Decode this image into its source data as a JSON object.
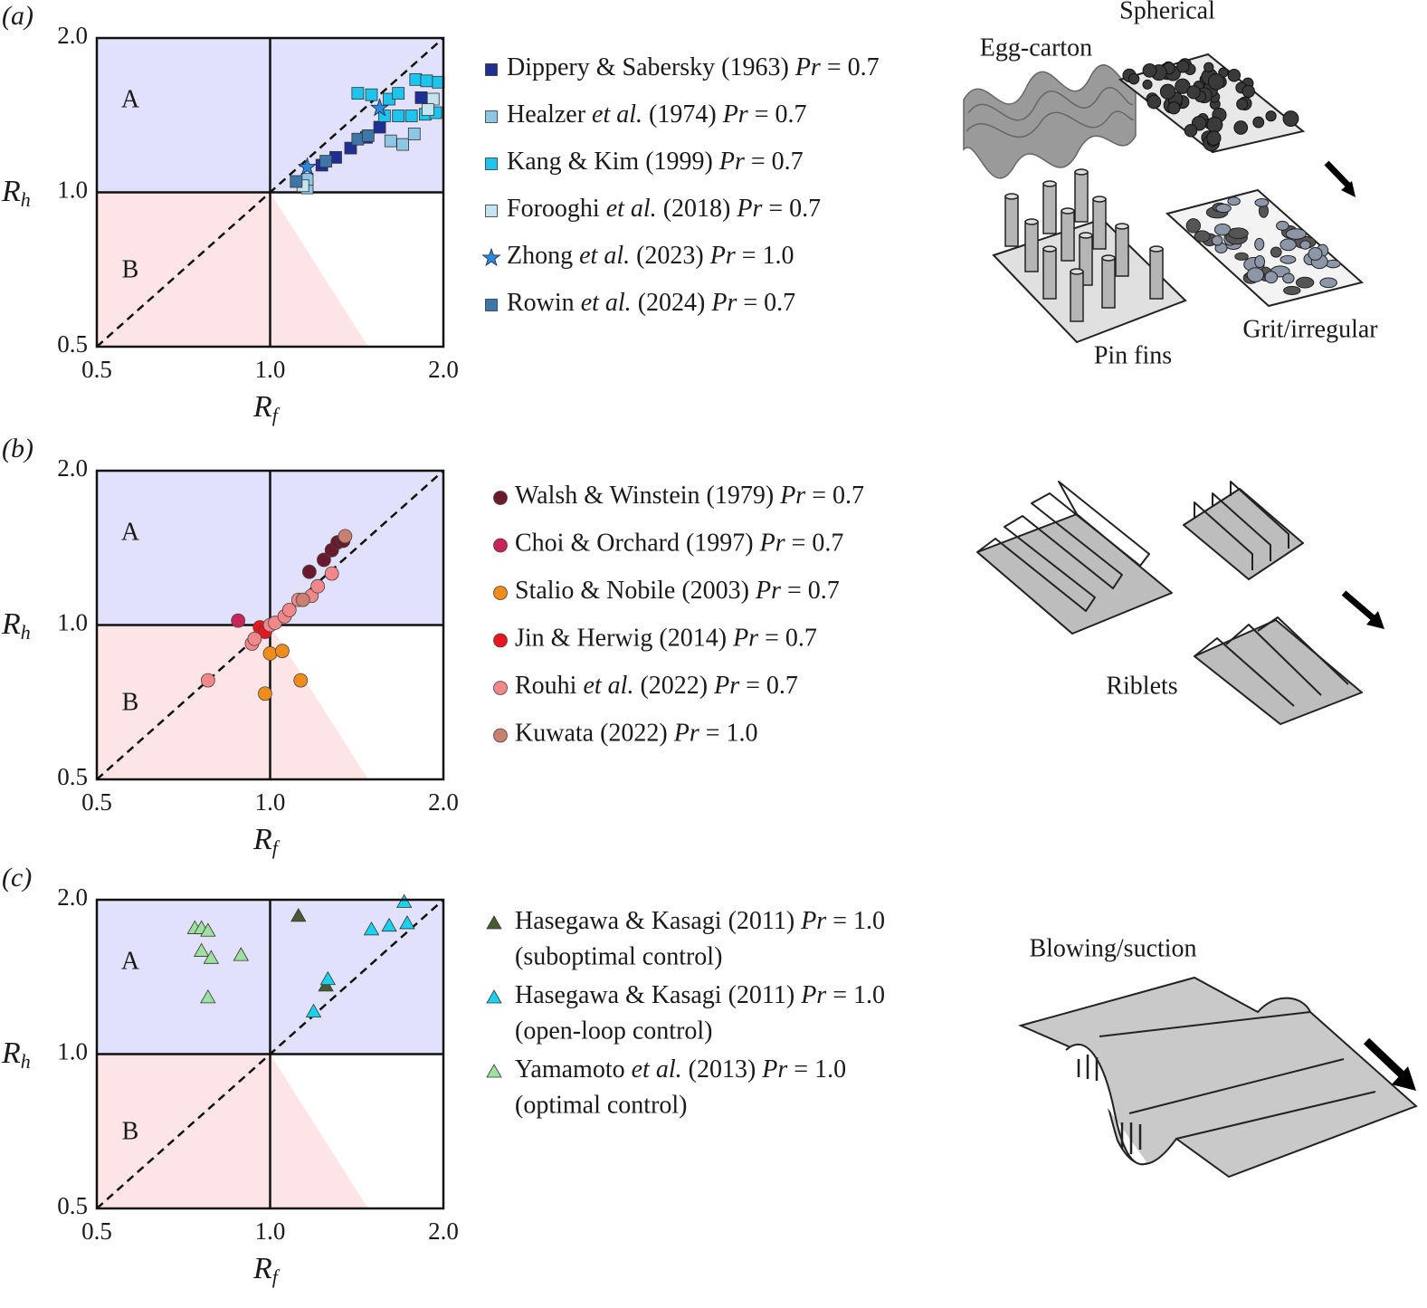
{
  "chart_data": [
    {
      "type": "scatter",
      "panel": "(a)",
      "xlabel": "Rf",
      "ylabel": "Rh",
      "xscale": "log",
      "yscale": "log",
      "xlim": [
        0.5,
        2.0
      ],
      "ylim": [
        0.5,
        2.0
      ],
      "xticks": [
        0.5,
        {
          "value": 1.0,
          "label": "1.0"
        },
        {
          "value": 2.0,
          "label": "2.0"
        }
      ],
      "yticks": [
        0.5,
        {
          "value": 1.0,
          "label": "1.0"
        },
        {
          "value": 2.0,
          "label": "2.0"
        }
      ],
      "vline": 1.0,
      "hline": 1.0,
      "diagonal": true,
      "regions": [
        {
          "label": "A",
          "color": "#e1e1fb",
          "label_color": "#5b1a8a",
          "polygon": [
            [
              0.5,
              1.0
            ],
            [
              2.0,
              1.0
            ],
            [
              2.0,
              2.0
            ],
            [
              0.5,
              2.0
            ]
          ]
        },
        {
          "label": "B",
          "color": "#fde4e7",
          "label_color": "#e0208a",
          "polygon": [
            [
              0.5,
              0.5
            ],
            [
              0.5,
              1.0
            ],
            [
              1.0,
              1.0
            ],
            [
              1.48,
              0.5
            ]
          ]
        }
      ],
      "series": [
        {
          "name": "Dippery & Sabersky (1963) Pr = 0.7",
          "marker": "square",
          "color": "#1f2f96",
          "x": [
            1.23,
            1.3,
            1.38,
            1.47,
            1.55,
            1.83
          ],
          "values": [
            1.13,
            1.17,
            1.22,
            1.28,
            1.34,
            1.53
          ]
        },
        {
          "name": "Healzer et al. (1974) Pr = 0.7",
          "marker": "square",
          "color": "#8ec6e6",
          "x": [
            1.16,
            1.16,
            1.62,
            1.7,
            1.78
          ],
          "values": [
            1.02,
            1.06,
            1.26,
            1.24,
            1.3
          ]
        },
        {
          "name": "Kang & Kim (1999) Pr = 0.7",
          "marker": "square",
          "color": "#1cc4ee",
          "x": [
            1.42,
            1.5,
            1.61,
            1.58,
            1.67,
            1.76,
            1.86,
            1.94,
            1.79,
            1.87,
            1.96,
            1.67
          ],
          "values": [
            1.56,
            1.55,
            1.52,
            1.41,
            1.41,
            1.41,
            1.42,
            1.43,
            1.66,
            1.65,
            1.64,
            1.56
          ]
        },
        {
          "name": "Forooghi et al. (2018) Pr = 0.7",
          "marker": "square",
          "color": "#c4e4f2",
          "x": [
            1.14,
            1.92,
            1.88
          ],
          "values": [
            1.03,
            1.52,
            1.45
          ]
        },
        {
          "name": "Zhong et al. (2023) Pr = 1.0",
          "marker": "star",
          "color": "#2a8ad8",
          "x": [
            1.16,
            1.55
          ],
          "values": [
            1.12,
            1.46
          ]
        },
        {
          "name": "Rowin et al. (2024) Pr = 0.7",
          "marker": "square",
          "color": "#3f76a8",
          "x": [
            1.11,
            1.25,
            1.42,
            1.48
          ],
          "values": [
            1.05,
            1.15,
            1.27,
            1.29
          ]
        }
      ]
    },
    {
      "type": "scatter",
      "panel": "(b)",
      "xlabel": "Rf",
      "ylabel": "Rh",
      "xscale": "log",
      "yscale": "log",
      "xlim": [
        0.5,
        2.0
      ],
      "ylim": [
        0.5,
        2.0
      ],
      "xticks": [
        0.5,
        {
          "value": 1.0,
          "label": "1.0"
        },
        {
          "value": 2.0,
          "label": "2.0"
        }
      ],
      "yticks": [
        0.5,
        {
          "value": 1.0,
          "label": "1.0"
        },
        {
          "value": 2.0,
          "label": "2.0"
        }
      ],
      "vline": 1.0,
      "hline": 1.0,
      "diagonal": true,
      "regions": [
        {
          "label": "A",
          "color": "#e1e1fb",
          "label_color": "#5b1a8a",
          "polygon": [
            [
              0.5,
              1.0
            ],
            [
              2.0,
              1.0
            ],
            [
              2.0,
              2.0
            ],
            [
              0.5,
              2.0
            ]
          ]
        },
        {
          "label": "B",
          "color": "#fde4e7",
          "label_color": "#e0208a",
          "polygon": [
            [
              0.5,
              0.5
            ],
            [
              0.5,
              1.0
            ],
            [
              1.0,
              1.0
            ],
            [
              1.48,
              0.5
            ]
          ]
        }
      ],
      "series": [
        {
          "name": "Walsh & Winstein (1979) Pr = 0.7",
          "marker": "circle",
          "color": "#6b1a2e",
          "x": [
            1.17,
            1.24,
            1.28,
            1.31,
            1.34
          ],
          "values": [
            1.27,
            1.34,
            1.4,
            1.45,
            1.46
          ]
        },
        {
          "name": "Choi & Orchard (1997) Pr = 0.7",
          "marker": "circle",
          "color": "#c8245a",
          "x": [
            0.88
          ],
          "values": [
            1.02
          ]
        },
        {
          "name": "Stalio & Nobile (2003) Pr = 0.7",
          "marker": "circle",
          "color": "#f08c1a",
          "x": [
            0.98,
            1.0,
            1.05,
            1.13
          ],
          "values": [
            0.735,
            0.88,
            0.89,
            0.78
          ]
        },
        {
          "name": "Jin & Herwig (2014) Pr = 0.7",
          "marker": "circle",
          "color": "#e8161e",
          "x": [
            0.96,
            0.98
          ],
          "values": [
            0.99,
            0.97
          ]
        },
        {
          "name": "Rouhi et al. (2022) Pr = 0.7",
          "marker": "circle",
          "color": "#f3878a",
          "x": [
            0.78,
            0.93,
            0.94,
            1.0,
            1.02,
            1.06,
            1.08,
            1.12,
            1.18,
            1.21,
            1.28
          ],
          "values": [
            0.78,
            0.92,
            0.94,
            1.0,
            1.01,
            1.04,
            1.07,
            1.12,
            1.14,
            1.19,
            1.26
          ]
        },
        {
          "name": "Kuwata (2022) Pr = 1.0",
          "marker": "circle",
          "color": "#c98070",
          "x": [
            1.35,
            1.14
          ],
          "values": [
            1.49,
            1.12
          ]
        }
      ]
    },
    {
      "type": "scatter",
      "panel": "(c)",
      "xlabel": "Rf",
      "ylabel": "Rh",
      "xscale": "log",
      "yscale": "log",
      "xlim": [
        0.5,
        2.0
      ],
      "ylim": [
        0.5,
        2.0
      ],
      "xticks": [
        0.5,
        {
          "value": 1.0,
          "label": "1.0"
        },
        {
          "value": 2.0,
          "label": "2.0"
        }
      ],
      "yticks": [
        0.5,
        {
          "value": 1.0,
          "label": "1.0"
        },
        {
          "value": 2.0,
          "label": "2.0"
        }
      ],
      "vline": 1.0,
      "hline": 1.0,
      "diagonal": true,
      "regions": [
        {
          "label": "A",
          "color": "#e1e1fb",
          "label_color": "#5b1a8a",
          "polygon": [
            [
              0.5,
              1.0
            ],
            [
              2.0,
              1.0
            ],
            [
              2.0,
              2.0
            ],
            [
              0.5,
              2.0
            ]
          ]
        },
        {
          "label": "B",
          "color": "#fde4e7",
          "label_color": "#e0208a",
          "polygon": [
            [
              0.5,
              0.5
            ],
            [
              0.5,
              1.0
            ],
            [
              1.0,
              1.0
            ],
            [
              1.48,
              0.5
            ]
          ]
        }
      ],
      "series": [
        {
          "name": "Hasegawa & Kasagi (2011) Pr = 1.0",
          "note": "(suboptimal control)",
          "marker": "triangle",
          "color": "#4a5a32",
          "x": [
            1.12,
            1.25
          ],
          "values": [
            1.86,
            1.36
          ]
        },
        {
          "name": "Hasegawa & Kasagi (2011) Pr = 1.0",
          "note": "(open-loop control)",
          "marker": "triangle",
          "color": "#1ad2ee",
          "x": [
            1.71,
            1.73,
            1.61,
            1.5,
            1.26,
            1.19
          ],
          "values": [
            1.98,
            1.8,
            1.78,
            1.75,
            1.4,
            1.21
          ]
        },
        {
          "name": "Yamamoto et al. (2013) Pr = 1.0",
          "note": "(optimal control)",
          "marker": "triangle",
          "color": "#9ee0a0",
          "x": [
            0.74,
            0.76,
            0.78,
            0.76,
            0.79,
            0.89,
            0.78
          ],
          "values": [
            1.76,
            1.76,
            1.74,
            1.59,
            1.54,
            1.56,
            1.29
          ]
        }
      ]
    }
  ],
  "illustrations": [
    {
      "labels": [
        "Spherical",
        "Egg-carton",
        "Pin fins",
        "Grit/irregular"
      ]
    },
    {
      "labels": [
        "Riblets"
      ]
    },
    {
      "labels": [
        "Blowing/suction"
      ]
    }
  ]
}
